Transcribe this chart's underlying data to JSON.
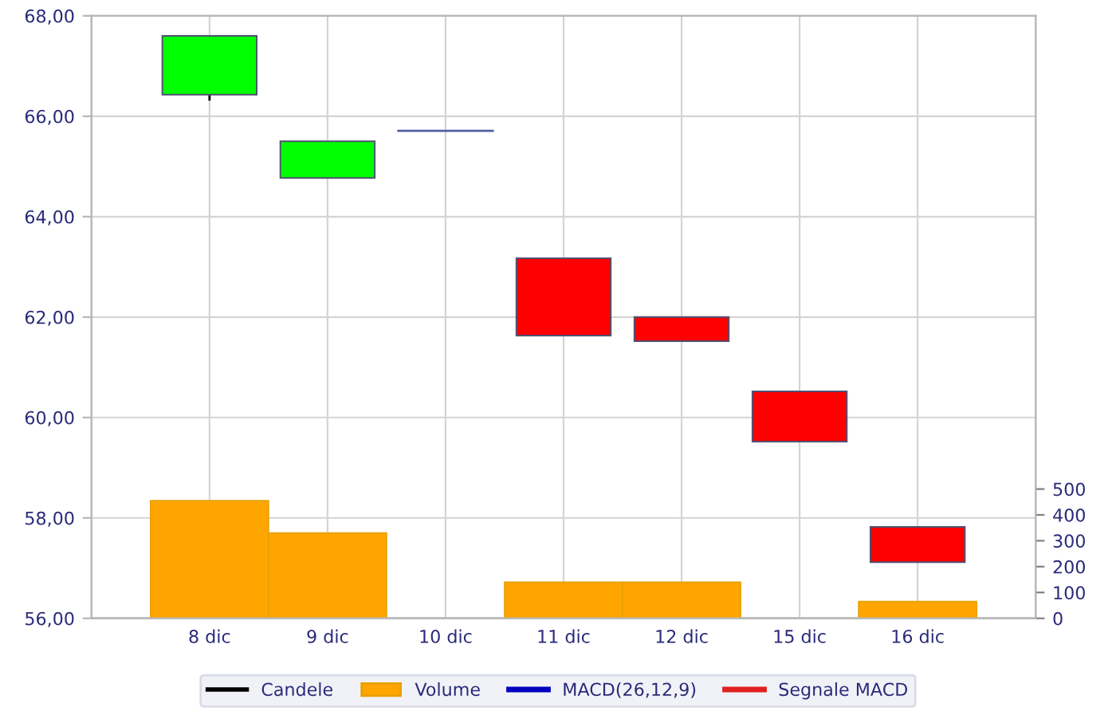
{
  "chart_data": {
    "type": "candlestick",
    "categories": [
      "8 dic",
      "9 dic",
      "10 dic",
      "11 dic",
      "12 dic",
      "15 dic",
      "16 dic"
    ],
    "series": [
      {
        "name": "Candele",
        "color": "#000000",
        "colors": [
          "#00ff00",
          "#00ff00",
          "#5060a0",
          "#ff0000",
          "#ff0000",
          "#ff0000",
          "#ff0000"
        ],
        "ohlc": [
          [
            66.43,
            67.6,
            66.31,
            67.6
          ],
          [
            64.77,
            65.5,
            64.77,
            65.5
          ],
          [
            65.71,
            65.71,
            65.71,
            65.71
          ],
          [
            63.17,
            63.17,
            61.63,
            61.63
          ],
          [
            62.0,
            62.0,
            61.52,
            61.52
          ],
          [
            60.52,
            60.52,
            59.52,
            59.52
          ],
          [
            57.82,
            57.82,
            57.12,
            57.12
          ]
        ]
      },
      {
        "name": "Volume",
        "type": "bar",
        "axis": "y2",
        "color": "#ffa500",
        "values": [
          455,
          330,
          null,
          140,
          140,
          null,
          65
        ]
      },
      {
        "name": "MACD(26,12,9)",
        "type": "line",
        "color": "#0000c0",
        "values": [
          null,
          null,
          null,
          null,
          null,
          null,
          null
        ]
      },
      {
        "name": "Segnale MACD",
        "type": "line",
        "color": "#e02020",
        "values": [
          null,
          null,
          null,
          null,
          null,
          null,
          null
        ]
      }
    ],
    "ylim": [
      56,
      68
    ],
    "yticks": [
      {
        "value": 56,
        "label": "56,00"
      },
      {
        "value": 58,
        "label": "58,00"
      },
      {
        "value": 60,
        "label": "60,00"
      },
      {
        "value": 62,
        "label": "62,00"
      },
      {
        "value": 64,
        "label": "64,00"
      },
      {
        "value": 66,
        "label": "66,00"
      },
      {
        "value": 68,
        "label": "68,00"
      }
    ],
    "y2lim": [
      0,
      2330
    ],
    "y2ticks": [
      0,
      100,
      200,
      300,
      400,
      500
    ],
    "grid": true,
    "legend": "bottom"
  }
}
